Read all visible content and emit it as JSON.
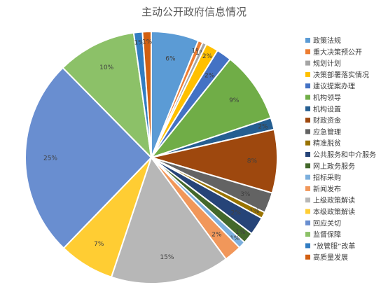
{
  "chart_data": {
    "type": "pie",
    "title": "主动公开政府信息情况",
    "legend_position": "right",
    "slices": [
      {
        "name": "政策法规",
        "value": 6,
        "label": "6%",
        "color": "#5b9bd5"
      },
      {
        "name": "重大决策预公开",
        "value": 0.6,
        "label": "1%",
        "color": "#ed7d31"
      },
      {
        "name": "规划计划",
        "value": 0.5,
        "label": "1%",
        "color": "#a5a5a5"
      },
      {
        "name": "决策部署落实情况",
        "value": 1.6,
        "label": "2%",
        "color": "#ffc000"
      },
      {
        "name": "建议提案办理",
        "value": 1.9,
        "label": "2%",
        "color": "#4472c4"
      },
      {
        "name": "机构领导",
        "value": 9,
        "label": "9%",
        "color": "#70ad47"
      },
      {
        "name": "机构设置",
        "value": 1.5,
        "label": "2%",
        "color": "#255e91"
      },
      {
        "name": "财政资金",
        "value": 8,
        "label": "8%",
        "color": "#9e480e"
      },
      {
        "name": "应急管理",
        "value": 2.6,
        "label": "3%",
        "color": "#636363"
      },
      {
        "name": "精准脱贫",
        "value": 0.8,
        "label": "1%",
        "color": "#997300"
      },
      {
        "name": "公共服务和中介服务",
        "value": 2.3,
        "label": "2%",
        "color": "#264478"
      },
      {
        "name": "网上政务服务",
        "value": 1.4,
        "label": "1%",
        "color": "#43682b"
      },
      {
        "name": "招标采购",
        "value": 0.9,
        "label": "1%",
        "color": "#7cafdd"
      },
      {
        "name": "新闻发布",
        "value": 2.2,
        "label": "2%",
        "color": "#f1975a"
      },
      {
        "name": "上级政策解读",
        "value": 15,
        "label": "15%",
        "color": "#b7b7b7"
      },
      {
        "name": "本级政策解读",
        "value": 7,
        "label": "7%",
        "color": "#ffcd33"
      },
      {
        "name": "回应关切",
        "value": 25,
        "label": "25%",
        "color": "#698ed0"
      },
      {
        "name": "监督保障",
        "value": 10,
        "label": "10%",
        "color": "#8cc168"
      },
      {
        "name": "“放管服”改革",
        "value": 1.1,
        "label": "1%",
        "color": "#327dc2"
      },
      {
        "name": "高质量发展",
        "value": 1.1,
        "label": "1%",
        "color": "#d26012"
      }
    ]
  }
}
